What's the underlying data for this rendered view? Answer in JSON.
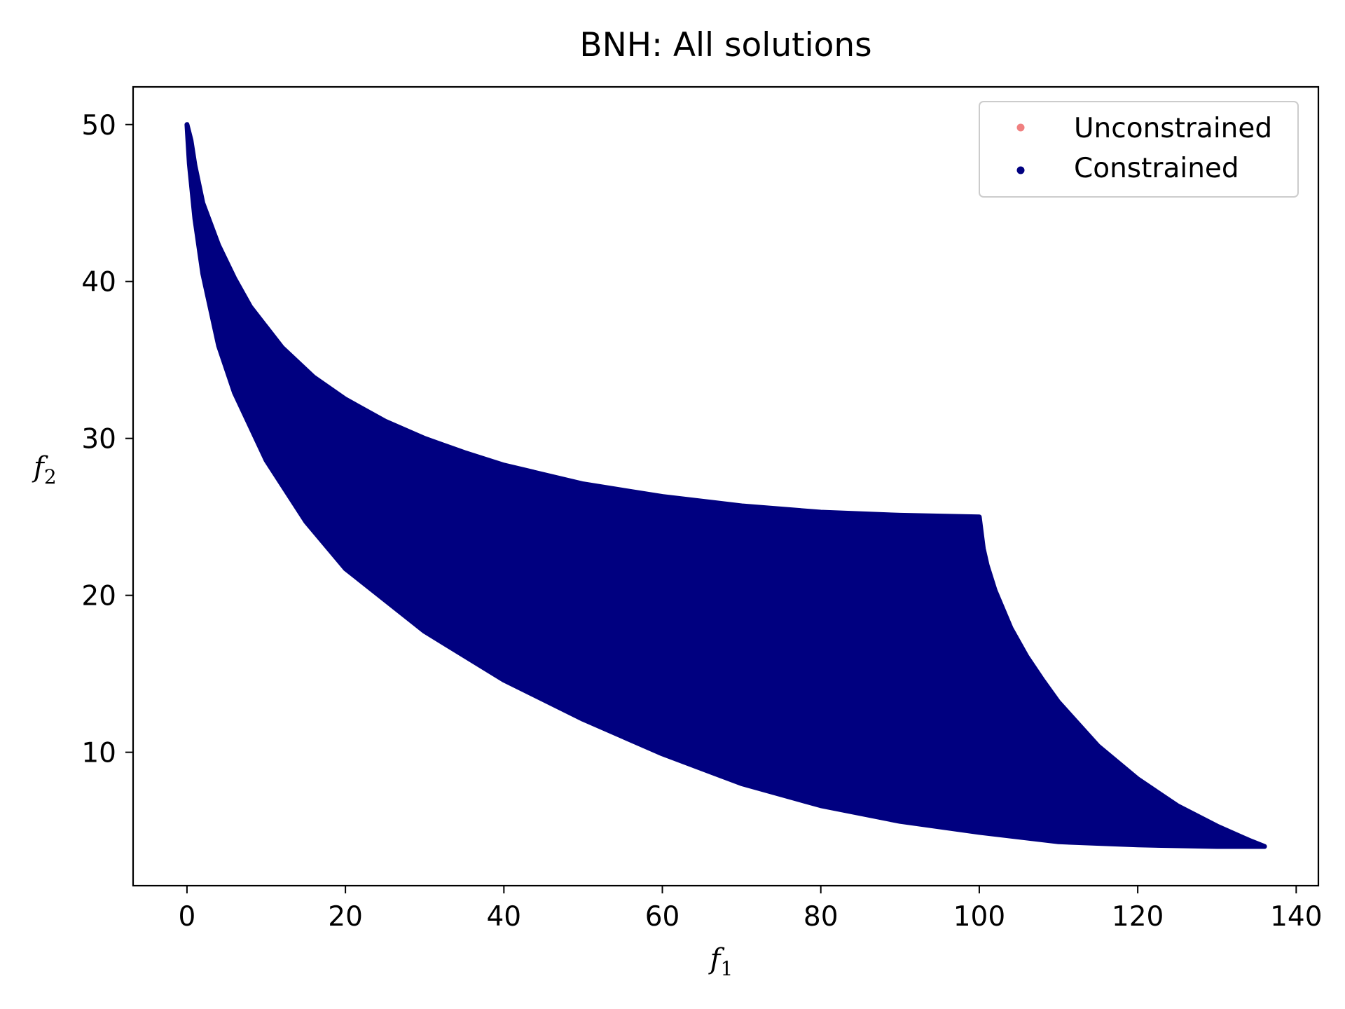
{
  "chart_data": {
    "type": "scatter",
    "title": "BNH: All solutions",
    "xlabel": {
      "main": "f",
      "sub": "1"
    },
    "ylabel": {
      "main": "f",
      "sub": "2"
    },
    "xlim": [
      -6.8,
      142.8
    ],
    "ylim": [
      1.5,
      52.4
    ],
    "xticks": [
      0,
      20,
      40,
      60,
      80,
      100,
      120,
      140
    ],
    "xtick_labels": [
      "0",
      "20",
      "40",
      "60",
      "80",
      "100",
      "120",
      "140"
    ],
    "yticks": [
      10,
      20,
      30,
      40,
      50
    ],
    "ytick_labels": [
      "10",
      "20",
      "30",
      "40",
      "50"
    ],
    "grid": false,
    "legend_position": "top-right",
    "series": [
      {
        "name": "Unconstrained",
        "color": "#f08080",
        "marker": "dot",
        "points": []
      },
      {
        "name": "Constrained",
        "color": "#000080",
        "marker": "dot",
        "filled_region": true,
        "boundary": [
          [
            0,
            50
          ],
          [
            0.5,
            49
          ],
          [
            1,
            47.4
          ],
          [
            2,
            45
          ],
          [
            4,
            42.3
          ],
          [
            6,
            40.2
          ],
          [
            8,
            38.4
          ],
          [
            12,
            35.8
          ],
          [
            16,
            33.9
          ],
          [
            20,
            32.5
          ],
          [
            25,
            31.1
          ],
          [
            30,
            30
          ],
          [
            35,
            29.1
          ],
          [
            40,
            28.3
          ],
          [
            50,
            27.1
          ],
          [
            60,
            26.3
          ],
          [
            70,
            25.7
          ],
          [
            80,
            25.3
          ],
          [
            90,
            25.1
          ],
          [
            100,
            25
          ],
          [
            100.5,
            23
          ],
          [
            101,
            21.9
          ],
          [
            102,
            20.3
          ],
          [
            104,
            17.9
          ],
          [
            106,
            16.1
          ],
          [
            108,
            14.6
          ],
          [
            110,
            13.2
          ],
          [
            115,
            10.4
          ],
          [
            120,
            8.3
          ],
          [
            125,
            6.6
          ],
          [
            130,
            5.3
          ],
          [
            134,
            4.4
          ],
          [
            136,
            4
          ],
          [
            130,
            4
          ],
          [
            120,
            4.1
          ],
          [
            110,
            4.3
          ],
          [
            100,
            4.9
          ],
          [
            90,
            5.6
          ],
          [
            80,
            6.6
          ],
          [
            70,
            8
          ],
          [
            60,
            9.9
          ],
          [
            50,
            12.1
          ],
          [
            40,
            14.6
          ],
          [
            30,
            17.7
          ],
          [
            20,
            21.7
          ],
          [
            15,
            24.7
          ],
          [
            10,
            28.6
          ],
          [
            6,
            32.9
          ],
          [
            4,
            35.9
          ],
          [
            2,
            40.5
          ],
          [
            1,
            44
          ],
          [
            0.3,
            47.5
          ],
          [
            0,
            50
          ]
        ]
      }
    ]
  }
}
